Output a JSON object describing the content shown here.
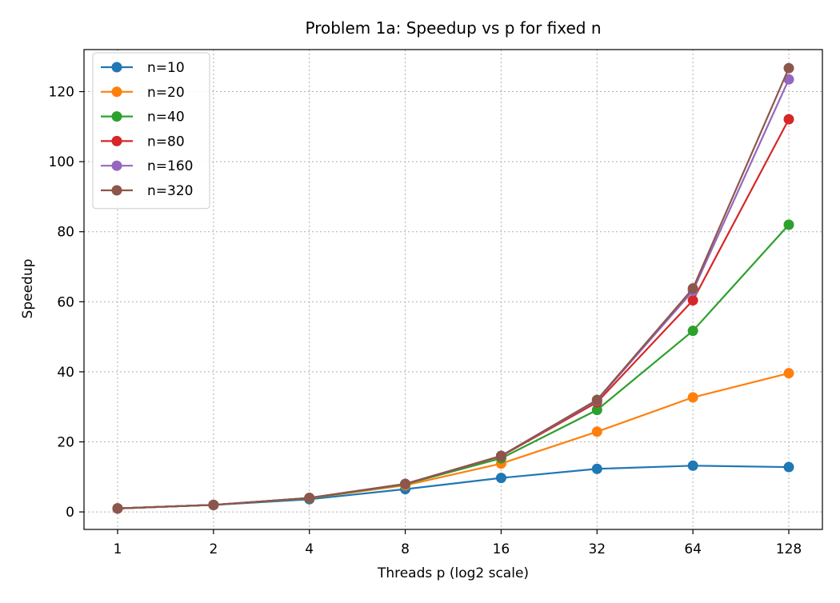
{
  "chart_data": {
    "type": "line",
    "title": "Problem 1a: Speedup vs p for fixed n",
    "xlabel": "Threads p (log2 scale)",
    "ylabel": "Speedup",
    "x_scale": "log2",
    "x": [
      1,
      2,
      4,
      8,
      16,
      32,
      64,
      128
    ],
    "x_tick_labels": [
      "1",
      "2",
      "4",
      "8",
      "16",
      "32",
      "64",
      "128"
    ],
    "y_ticks": [
      0,
      20,
      40,
      60,
      80,
      100,
      120
    ],
    "y_tick_labels": [
      "0",
      "20",
      "40",
      "60",
      "80",
      "100",
      "120"
    ],
    "ylim": [
      -5,
      132
    ],
    "grid": true,
    "grid_style": "dotted",
    "legend_position": "top-left",
    "marker": "circle",
    "series": [
      {
        "name": "n=10",
        "color": "#1f77b4",
        "values": [
          1.0,
          2.0,
          3.6,
          6.5,
          9.7,
          12.3,
          13.2,
          12.8
        ]
      },
      {
        "name": "n=20",
        "color": "#ff7f0e",
        "values": [
          1.0,
          2.0,
          3.9,
          7.6,
          13.8,
          22.9,
          32.7,
          39.6
        ]
      },
      {
        "name": "n=40",
        "color": "#2ca02c",
        "values": [
          1.0,
          2.0,
          3.9,
          7.9,
          15.3,
          29.1,
          51.7,
          82.0
        ]
      },
      {
        "name": "n=80",
        "color": "#d62728",
        "values": [
          1.0,
          2.0,
          4.0,
          8.0,
          15.9,
          31.3,
          60.4,
          112.1
        ]
      },
      {
        "name": "n=160",
        "color": "#9467bd",
        "values": [
          1.0,
          2.0,
          4.0,
          8.0,
          16.0,
          31.8,
          63.1,
          123.5
        ]
      },
      {
        "name": "n=320",
        "color": "#8c564b",
        "values": [
          1.0,
          2.0,
          4.0,
          8.0,
          16.0,
          32.0,
          63.8,
          126.7
        ]
      }
    ]
  }
}
